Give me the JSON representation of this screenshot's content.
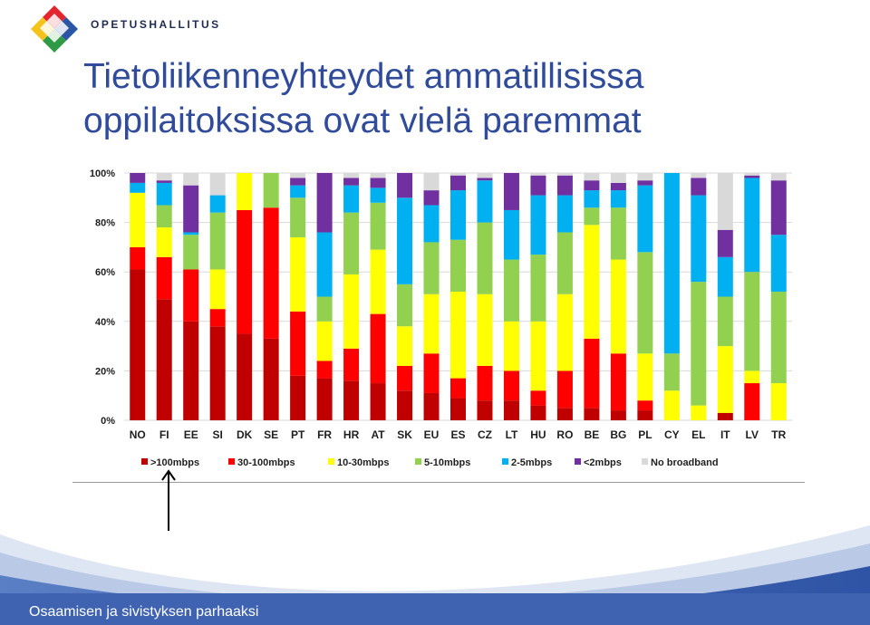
{
  "header": {
    "brand": "OPETUSHALLITUS",
    "title_line1": "Tietoliikenneyhteydet ammatillisissa",
    "title_line2": "oppilaitoksissa ovat vielä paremmat"
  },
  "footer": {
    "text": "Osaamisen ja sivistyksen parhaaksi"
  },
  "colors": {
    "title": "#2f4b9a",
    "footer_band": "#3f63b0",
    "series": [
      "#c00000",
      "#ff0000",
      "#ffff00",
      "#92d050",
      "#00b0f0",
      "#7030a0",
      "#d9d9d9"
    ]
  },
  "chart_data": {
    "type": "bar",
    "stacked": true,
    "ylim": [
      0,
      100
    ],
    "yticks": [
      "0%",
      "20%",
      "40%",
      "60%",
      "80%",
      "100%"
    ],
    "grid": true,
    "legend_position": "bottom",
    "categories": [
      "NO",
      "FI",
      "EE",
      "SI",
      "DK",
      "SE",
      "PT",
      "FR",
      "HR",
      "AT",
      "SK",
      "EU",
      "ES",
      "CZ",
      "LT",
      "HU",
      "RO",
      "BE",
      "BG",
      "PL",
      "CY",
      "EL",
      "IT",
      "LV",
      "TR"
    ],
    "series": [
      {
        "name": ">100mbps",
        "values": [
          61,
          49,
          40,
          38,
          35,
          33,
          18,
          17,
          16,
          15,
          12,
          11,
          9,
          8,
          8,
          6,
          5,
          5,
          4,
          4,
          0,
          0,
          3,
          0,
          0
        ]
      },
      {
        "name": "30-100mbps",
        "values": [
          9,
          17,
          21,
          7,
          50,
          53,
          26,
          7,
          13,
          28,
          10,
          16,
          8,
          14,
          12,
          6,
          15,
          28,
          23,
          4,
          0,
          0,
          0,
          15,
          0
        ]
      },
      {
        "name": "10-30mbps",
        "values": [
          22,
          12,
          0,
          16,
          15,
          0,
          30,
          16,
          30,
          26,
          16,
          24,
          35,
          29,
          20,
          28,
          31,
          46,
          38,
          19,
          12,
          6,
          27,
          5,
          15
        ]
      },
      {
        "name": "5-10mbps",
        "values": [
          0,
          9,
          14,
          23,
          0,
          14,
          16,
          10,
          25,
          19,
          17,
          21,
          21,
          29,
          25,
          27,
          25,
          7,
          21,
          41,
          15,
          50,
          20,
          40,
          37
        ]
      },
      {
        "name": "2-5mbps",
        "values": [
          4,
          9,
          1,
          7,
          0,
          0,
          5,
          26,
          11,
          6,
          35,
          15,
          20,
          17,
          20,
          24,
          15,
          7,
          7,
          27,
          73,
          35,
          16,
          38,
          23
        ]
      },
      {
        "name": "<2mbps",
        "values": [
          4,
          1,
          19,
          0,
          0,
          0,
          3,
          24,
          3,
          4,
          10,
          6,
          6,
          1,
          15,
          8,
          8,
          4,
          3,
          2,
          0,
          7,
          11,
          1,
          22
        ]
      },
      {
        "name": "No broadband",
        "values": [
          0,
          3,
          5,
          9,
          0,
          0,
          2,
          0,
          2,
          2,
          0,
          7,
          1,
          2,
          0,
          1,
          1,
          3,
          4,
          3,
          0,
          2,
          23,
          1,
          3
        ]
      }
    ]
  }
}
